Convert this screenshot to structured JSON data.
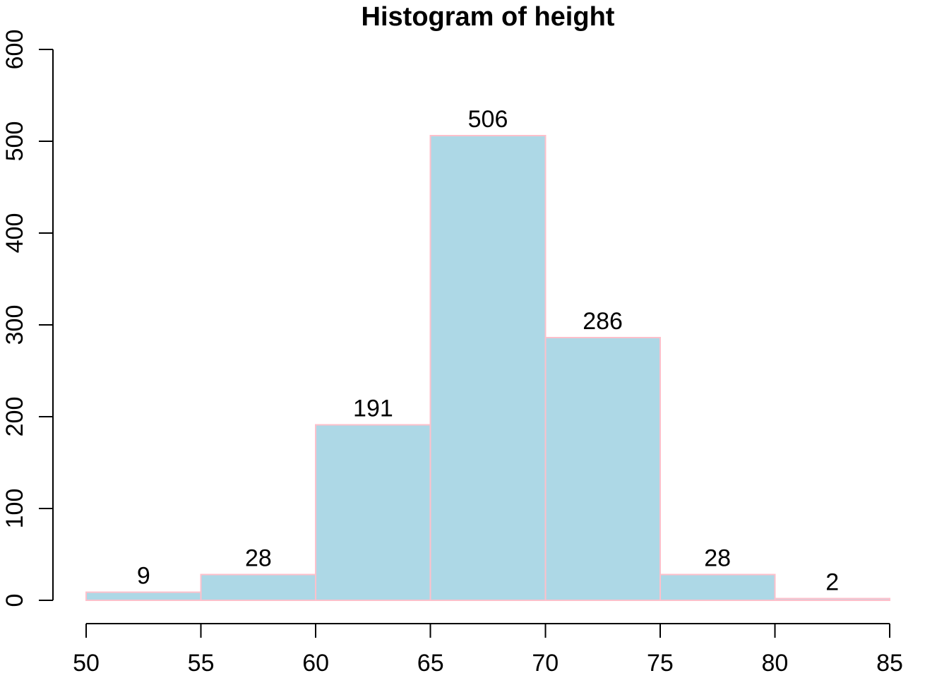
{
  "window": {
    "background": "#FFFFFF"
  },
  "chart_data": {
    "type": "bar",
    "subtype": "histogram",
    "title": "Histogram of height",
    "xlabel": "",
    "ylabel": "",
    "bins": {
      "breaks": [
        50,
        55,
        60,
        65,
        70,
        75,
        80,
        85
      ],
      "counts": [
        9,
        28,
        191,
        506,
        286,
        28,
        2
      ]
    },
    "bar_value_labels": [
      "9",
      "28",
      "191",
      "506",
      "286",
      "28",
      "2"
    ],
    "x_axis": {
      "ticks": [
        50,
        55,
        60,
        65,
        70,
        75,
        80,
        85
      ],
      "range": [
        50,
        85
      ]
    },
    "y_axis": {
      "ticks": [
        0,
        100,
        200,
        300,
        400,
        500,
        600
      ],
      "range": [
        0,
        600
      ],
      "label_rotation": -90
    },
    "legend_position": "none",
    "grid": false,
    "colors": {
      "bar_fill": "#ADD8E6",
      "bar_border": "#FFC0CB",
      "axis_line": "#000000",
      "text": "#000000",
      "background": "#FFFFFF"
    }
  }
}
